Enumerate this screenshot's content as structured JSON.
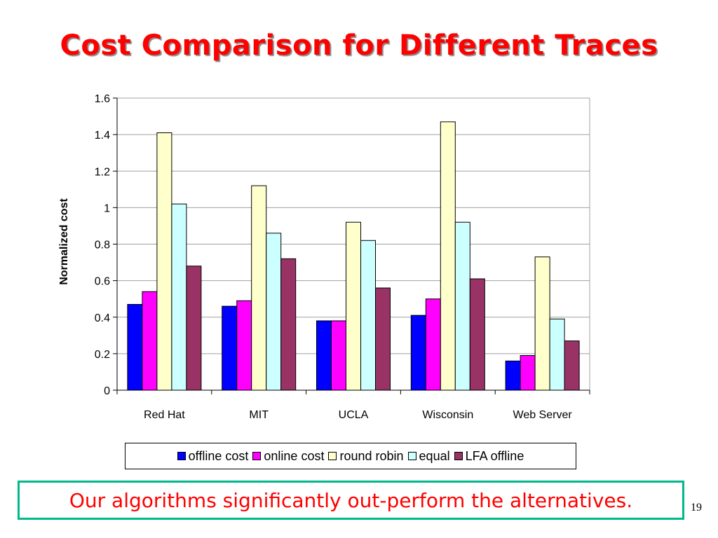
{
  "slide": {
    "title": "Cost Comparison for Different Traces",
    "caption": "Our algorithms significantly out-perform the alternatives.",
    "page_number": "19"
  },
  "chart_data": {
    "type": "bar",
    "title": "",
    "xlabel": "",
    "ylabel": "Normalized cost",
    "ylim": [
      0,
      1.6
    ],
    "yticks": [
      "0",
      "0.2",
      "0.4",
      "0.6",
      "0.8",
      "1",
      "1.2",
      "1.4",
      "1.6"
    ],
    "grid": true,
    "legend_position": "bottom",
    "categories": [
      "Red Hat",
      "MIT",
      "UCLA",
      "Wisconsin",
      "Web Server"
    ],
    "series": [
      {
        "name": "offline cost",
        "color": "#0000ff",
        "values": [
          0.47,
          0.46,
          0.38,
          0.41,
          0.16
        ]
      },
      {
        "name": "online cost",
        "color": "#ff00ff",
        "values": [
          0.54,
          0.49,
          0.38,
          0.5,
          0.19
        ]
      },
      {
        "name": "round robin",
        "color": "#ffffcc",
        "values": [
          1.41,
          1.12,
          0.92,
          1.47,
          0.73
        ]
      },
      {
        "name": "equal",
        "color": "#ccffff",
        "values": [
          1.02,
          0.86,
          0.82,
          0.92,
          0.39
        ]
      },
      {
        "name": "LFA offline",
        "color": "#993366",
        "values": [
          0.68,
          0.72,
          0.56,
          0.61,
          0.27
        ]
      }
    ]
  }
}
